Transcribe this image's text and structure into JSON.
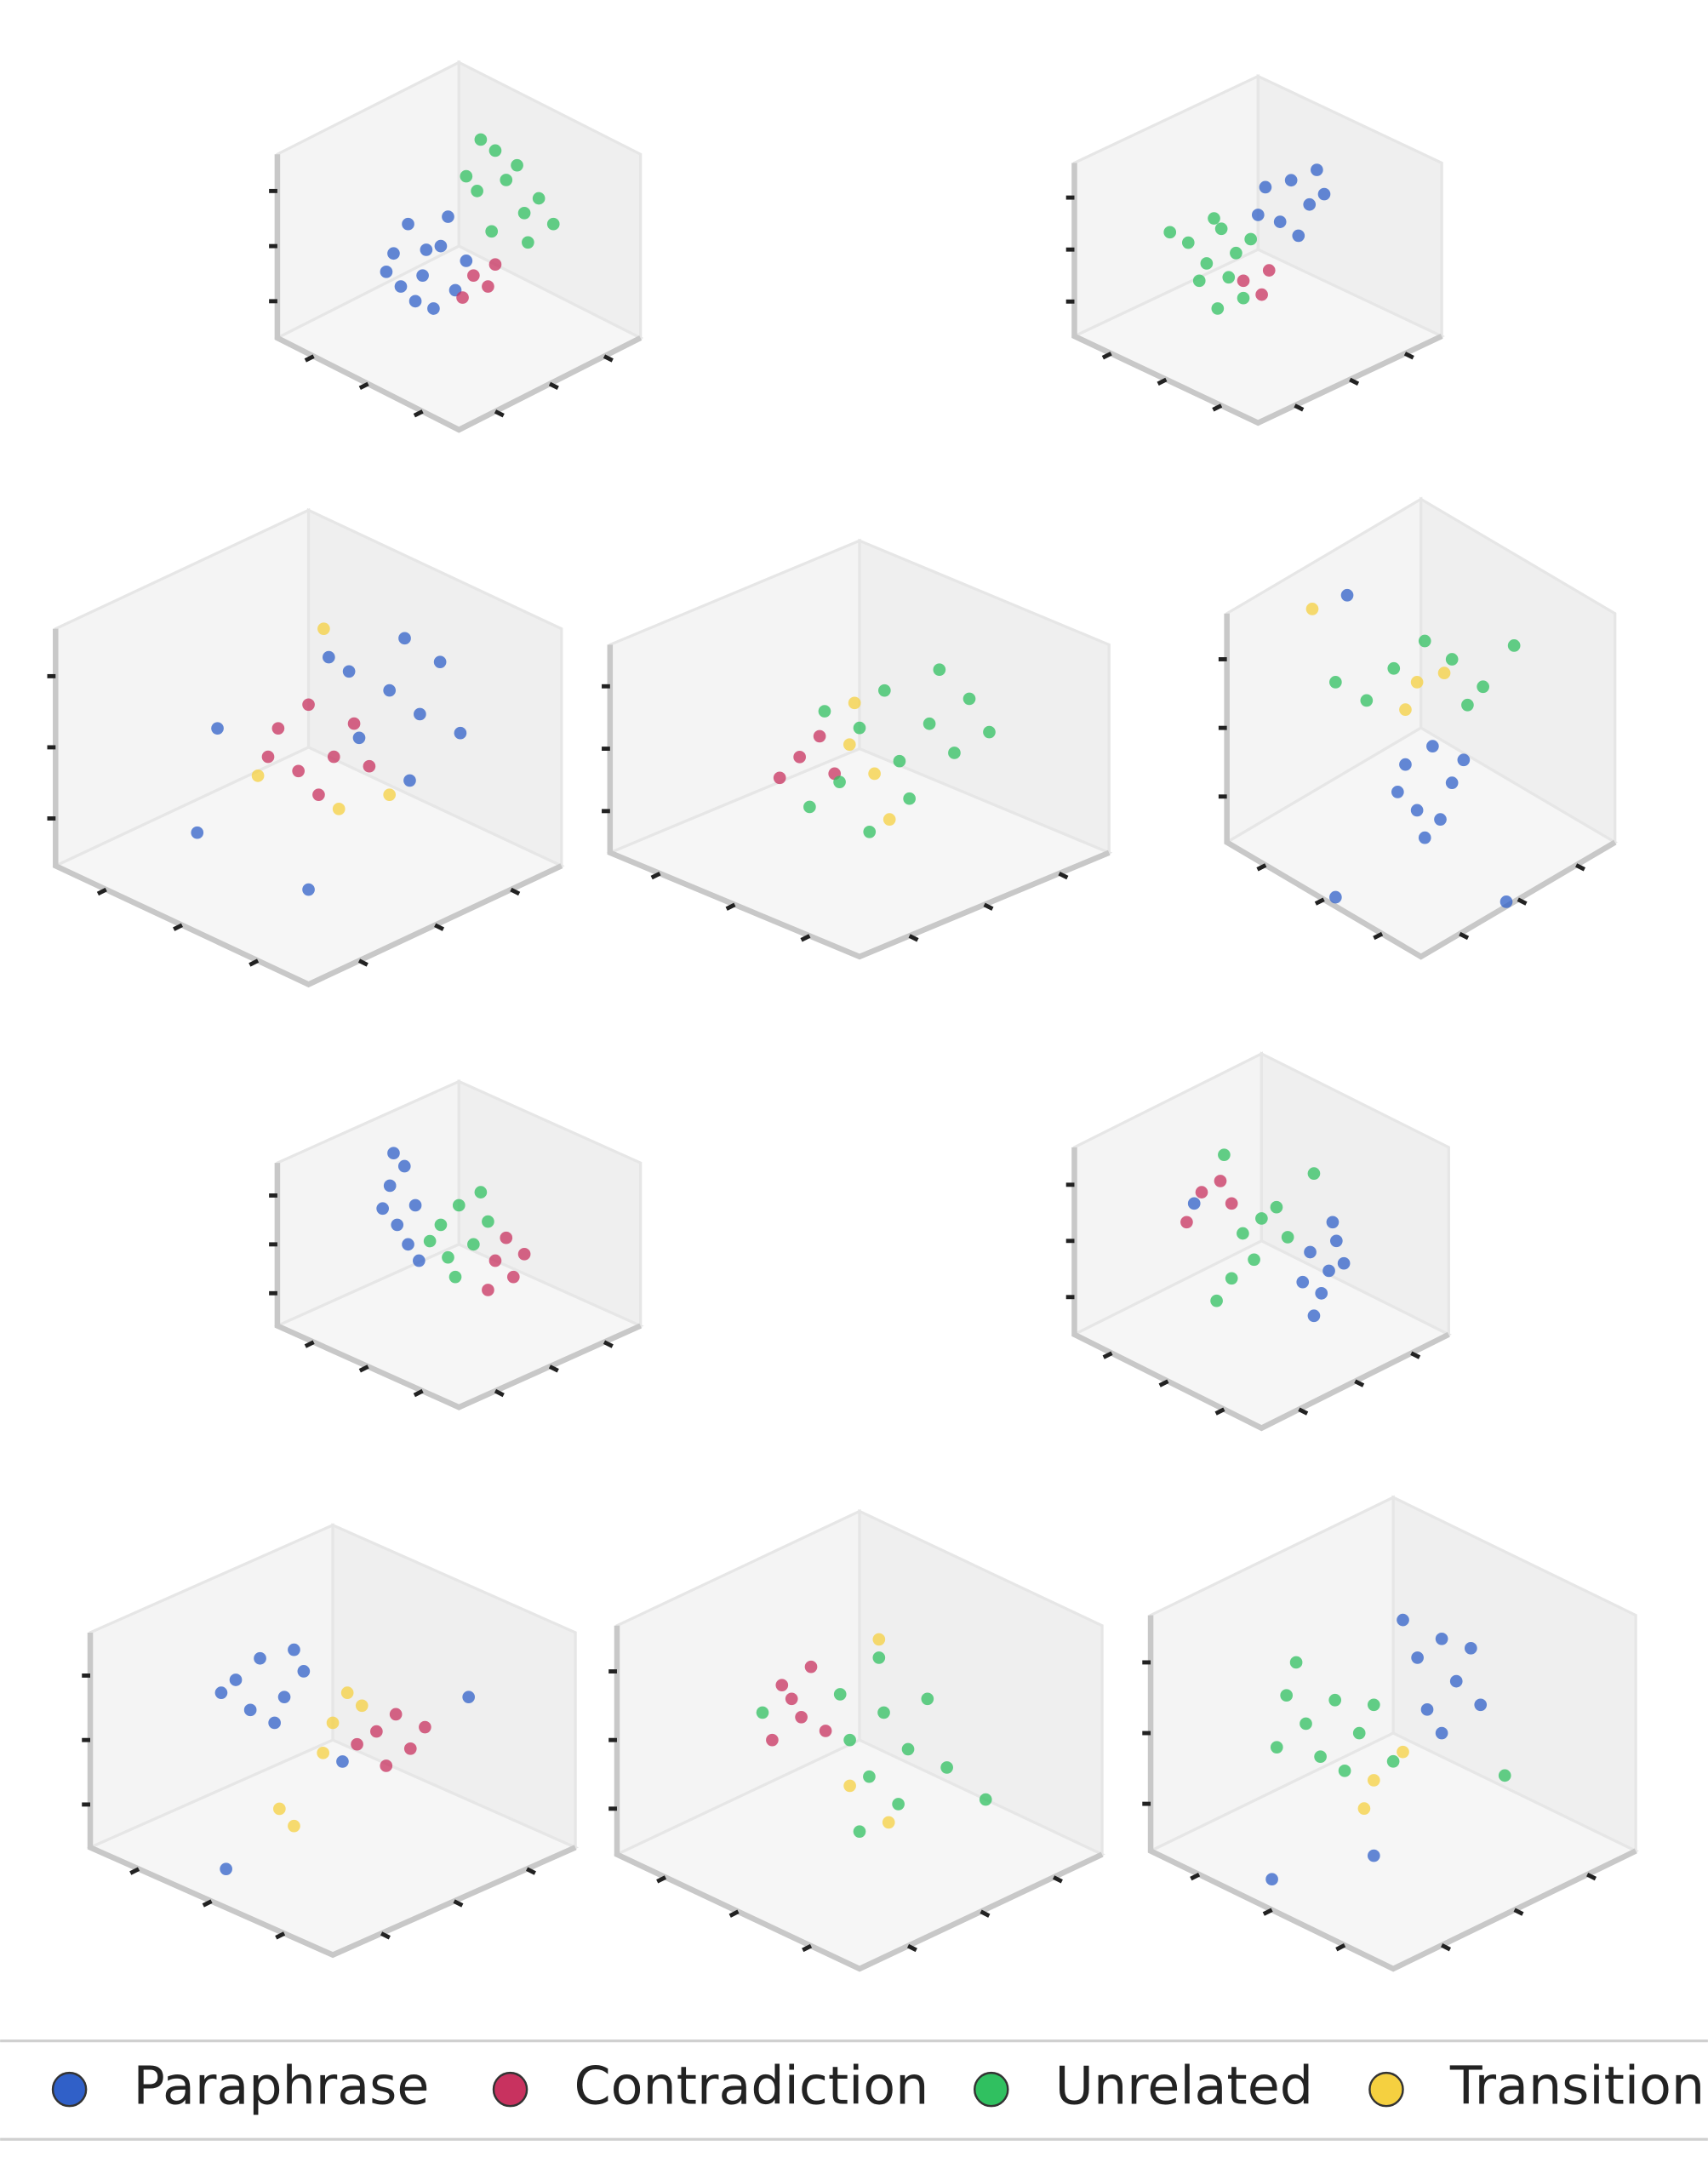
{
  "chart_data": {
    "type": "scatter3d",
    "xlim": [
      0,
      10
    ],
    "ylim": [
      0,
      10
    ],
    "series": [
      {
        "name": "Paraphrase",
        "color": "#3060c8"
      },
      {
        "name": "Contradiction",
        "color": "#c8325f"
      },
      {
        "name": "Unrelated",
        "color": "#30c060"
      },
      {
        "name": "Transition",
        "color": "#f5d040"
      }
    ],
    "panels": [
      {
        "series": [
          [
            [
              3.2,
              4.8
            ],
            [
              3.6,
              5.6
            ],
            [
              4.0,
              4.2
            ],
            [
              4.5,
              5.0
            ],
            [
              4.9,
              3.8
            ],
            [
              3.4,
              3.9
            ],
            [
              4.3,
              3.3
            ],
            [
              5.2,
              4.6
            ],
            [
              3.0,
              4.3
            ],
            [
              4.7,
              5.8
            ],
            [
              3.8,
              3.5
            ],
            [
              4.1,
              4.9
            ]
          ],
          [
            [
              5.4,
              4.2
            ],
            [
              5.8,
              3.9
            ],
            [
              5.1,
              3.6
            ],
            [
              6.0,
              4.5
            ]
          ],
          [
            [
              5.5,
              6.5
            ],
            [
              6.3,
              6.8
            ],
            [
              6.8,
              5.9
            ],
            [
              5.9,
              5.4
            ],
            [
              7.2,
              6.3
            ],
            [
              6.6,
              7.2
            ],
            [
              5.2,
              6.9
            ],
            [
              7.6,
              5.6
            ],
            [
              6.0,
              7.6
            ],
            [
              6.9,
              5.1
            ],
            [
              5.6,
              7.9
            ]
          ],
          []
        ]
      },
      {
        "series": [
          [
            [
              5.2,
              6.8
            ],
            [
              5.9,
              7.0
            ],
            [
              6.4,
              6.3
            ],
            [
              5.6,
              5.8
            ],
            [
              6.8,
              6.6
            ],
            [
              6.1,
              5.4
            ],
            [
              5.0,
              6.0
            ],
            [
              6.6,
              7.3
            ]
          ],
          [
            [
              4.6,
              4.1
            ],
            [
              5.1,
              3.7
            ],
            [
              5.3,
              4.4
            ]
          ],
          [
            [
              3.1,
              5.2
            ],
            [
              3.6,
              4.6
            ],
            [
              4.0,
              5.6
            ],
            [
              4.4,
              4.9
            ],
            [
              3.4,
              4.1
            ],
            [
              4.8,
              5.3
            ],
            [
              4.2,
              4.2
            ],
            [
              3.8,
              5.9
            ],
            [
              2.6,
              5.5
            ],
            [
              4.6,
              3.6
            ],
            [
              3.9,
              3.3
            ]
          ],
          []
        ]
      },
      {
        "series": [
          [
            [
              5.8,
              6.6
            ],
            [
              6.6,
              6.2
            ],
            [
              7.2,
              5.7
            ],
            [
              6.0,
              5.2
            ],
            [
              7.6,
              6.8
            ],
            [
              5.4,
              6.9
            ],
            [
              8.0,
              5.3
            ],
            [
              6.9,
              7.3
            ],
            [
              3.2,
              5.4
            ],
            [
              5.0,
              2.0
            ],
            [
              2.8,
              3.2
            ],
            [
              7.0,
              4.3
            ]
          ],
          [
            [
              4.4,
              5.4
            ],
            [
              5.0,
              5.9
            ],
            [
              5.5,
              4.8
            ],
            [
              4.8,
              4.5
            ],
            [
              5.9,
              5.5
            ],
            [
              4.2,
              4.8
            ],
            [
              5.2,
              4.0
            ],
            [
              6.2,
              4.6
            ]
          ],
          [],
          [
            [
              4.0,
              4.4
            ],
            [
              5.6,
              3.7
            ],
            [
              5.3,
              7.5
            ],
            [
              6.6,
              4.0
            ]
          ]
        ]
      },
      {
        "series": [
          [],
          [
            [
              3.8,
              4.8
            ],
            [
              4.2,
              5.3
            ],
            [
              4.5,
              4.4
            ],
            [
              3.4,
              4.3
            ]
          ],
          [
            [
              5.0,
              5.5
            ],
            [
              5.8,
              4.7
            ],
            [
              6.4,
              5.6
            ],
            [
              4.6,
              4.2
            ],
            [
              6.9,
              4.9
            ],
            [
              5.5,
              6.4
            ],
            [
              7.2,
              6.2
            ],
            [
              4.3,
              5.9
            ],
            [
              6.0,
              3.8
            ],
            [
              5.2,
              3.0
            ],
            [
              6.6,
              6.9
            ],
            [
              7.6,
              5.4
            ],
            [
              4.0,
              3.6
            ]
          ],
          [
            [
              4.8,
              5.1
            ],
            [
              5.3,
              4.4
            ],
            [
              4.9,
              6.1
            ],
            [
              5.6,
              3.3
            ]
          ]
        ]
      },
      {
        "series": [
          [
            [
              4.6,
              4.2
            ],
            [
              5.3,
              4.6
            ],
            [
              5.8,
              3.8
            ],
            [
              4.9,
              3.2
            ],
            [
              5.5,
              3.0
            ],
            [
              4.4,
              3.6
            ],
            [
              6.1,
              4.3
            ],
            [
              5.1,
              2.6
            ],
            [
              2.8,
              1.3
            ],
            [
              7.2,
              1.2
            ],
            [
              3.1,
              7.9
            ]
          ],
          [],
          [
            [
              4.3,
              6.3
            ],
            [
              5.8,
              6.5
            ],
            [
              6.6,
              5.9
            ],
            [
              3.6,
              5.6
            ],
            [
              7.4,
              6.8
            ],
            [
              2.8,
              6.0
            ],
            [
              5.1,
              6.9
            ],
            [
              6.2,
              5.5
            ]
          ],
          [
            [
              4.9,
              6.0
            ],
            [
              5.6,
              6.2
            ],
            [
              4.6,
              5.4
            ],
            [
              2.2,
              7.6
            ]
          ]
        ]
      },
      {
        "series": [
          [
            [
              3.1,
              6.8
            ],
            [
              3.5,
              7.4
            ],
            [
              3.3,
              5.6
            ],
            [
              3.8,
              6.2
            ],
            [
              2.9,
              6.1
            ],
            [
              3.6,
              5.0
            ],
            [
              3.2,
              7.8
            ],
            [
              3.9,
              4.5
            ]
          ],
          [
            [
              6.0,
              4.5
            ],
            [
              6.5,
              4.0
            ],
            [
              6.3,
              5.2
            ],
            [
              5.8,
              3.6
            ],
            [
              6.8,
              4.7
            ]
          ],
          [
            [
              4.5,
              5.6
            ],
            [
              5.0,
              6.2
            ],
            [
              5.4,
              5.0
            ],
            [
              4.7,
              4.6
            ],
            [
              5.8,
              5.7
            ],
            [
              4.2,
              5.1
            ],
            [
              5.6,
              6.6
            ],
            [
              4.9,
              4.0
            ]
          ],
          []
        ]
      },
      {
        "series": [
          [
            [
              6.3,
              4.7
            ],
            [
              6.8,
              4.2
            ],
            [
              6.6,
              3.6
            ],
            [
              7.0,
              5.0
            ],
            [
              6.1,
              3.9
            ],
            [
              7.2,
              4.4
            ],
            [
              3.2,
              6.0
            ],
            [
              6.4,
              3.0
            ],
            [
              6.9,
              5.5
            ]
          ],
          [
            [
              3.4,
              6.3
            ],
            [
              3.9,
              6.6
            ],
            [
              3.0,
              5.5
            ],
            [
              4.2,
              6.0
            ]
          ],
          [
            [
              4.5,
              5.2
            ],
            [
              5.0,
              5.6
            ],
            [
              4.8,
              4.5
            ],
            [
              5.4,
              5.9
            ],
            [
              4.2,
              4.0
            ],
            [
              5.7,
              5.1
            ],
            [
              3.8,
              3.4
            ],
            [
              4.0,
              7.3
            ],
            [
              6.4,
              6.8
            ]
          ],
          []
        ]
      },
      {
        "series": [
          [
            [
              3.0,
              6.4
            ],
            [
              3.5,
              6.9
            ],
            [
              4.0,
              6.0
            ],
            [
              3.3,
              5.7
            ],
            [
              4.4,
              6.6
            ],
            [
              2.7,
              6.1
            ],
            [
              3.8,
              5.4
            ],
            [
              4.2,
              7.1
            ],
            [
              7.8,
              6.0
            ],
            [
              2.8,
              2.0
            ],
            [
              5.2,
              4.5
            ]
          ],
          [
            [
              5.9,
              5.2
            ],
            [
              6.3,
              5.6
            ],
            [
              6.6,
              4.8
            ],
            [
              5.5,
              4.9
            ],
            [
              6.9,
              5.3
            ],
            [
              6.1,
              4.4
            ]
          ],
          [],
          [
            [
              5.0,
              5.4
            ],
            [
              5.3,
              6.1
            ],
            [
              4.8,
              4.7
            ],
            [
              5.6,
              5.8
            ],
            [
              3.9,
              3.4
            ],
            [
              4.2,
              3.0
            ]
          ]
        ]
      },
      {
        "series": [
          [],
          [
            [
              3.4,
              6.2
            ],
            [
              3.8,
              5.5
            ],
            [
              3.2,
              5.0
            ],
            [
              4.0,
              6.6
            ],
            [
              3.6,
              5.9
            ],
            [
              4.3,
              5.2
            ]
          ],
          [
            [
              4.8,
              5.0
            ],
            [
              5.5,
              5.6
            ],
            [
              6.0,
              4.8
            ],
            [
              5.2,
              4.2
            ],
            [
              6.4,
              5.9
            ],
            [
              4.6,
              6.0
            ],
            [
              5.8,
              3.6
            ],
            [
              6.8,
              4.4
            ],
            [
              3.0,
              5.6
            ],
            [
              5.0,
              3.0
            ],
            [
              7.6,
              3.7
            ],
            [
              5.4,
              6.8
            ]
          ],
          [
            [
              4.8,
              4.0
            ],
            [
              5.6,
              3.2
            ],
            [
              5.4,
              7.2
            ]
          ]
        ]
      },
      {
        "series": [
          [
            [
              5.5,
              6.6
            ],
            [
              6.0,
              7.0
            ],
            [
              6.3,
              6.1
            ],
            [
              5.7,
              5.5
            ],
            [
              6.6,
              6.8
            ],
            [
              5.2,
              7.4
            ],
            [
              6.0,
              5.0
            ],
            [
              6.8,
              5.6
            ],
            [
              2.5,
              1.9
            ],
            [
              4.6,
              2.4
            ]
          ],
          [],
          [
            [
              3.2,
              5.2
            ],
            [
              3.8,
              5.7
            ],
            [
              4.3,
              5.0
            ],
            [
              3.5,
              4.5
            ],
            [
              4.6,
              5.6
            ],
            [
              2.8,
              5.8
            ],
            [
              4.0,
              4.2
            ],
            [
              2.6,
              4.7
            ],
            [
              5.0,
              4.4
            ],
            [
              3.0,
              6.5
            ],
            [
              7.3,
              4.1
            ]
          ],
          [
            [
              4.6,
              4.0
            ],
            [
              4.4,
              3.4
            ],
            [
              5.2,
              4.6
            ]
          ]
        ]
      }
    ]
  }
}
